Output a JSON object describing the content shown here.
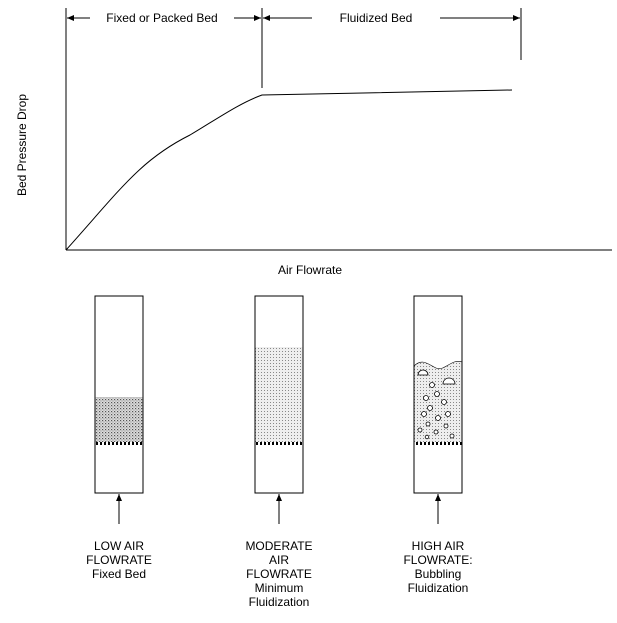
{
  "graph": {
    "regions": [
      "Fixed or Packed Bed",
      "Fluidized Bed"
    ],
    "y_axis_label": "Bed Pressure Drop",
    "x_axis_label": "Air Flowrate"
  },
  "columns": [
    {
      "label_lines": [
        "LOW AIR",
        "FLOWRATE",
        "Fixed Bed"
      ]
    },
    {
      "label_lines": [
        "MODERATE",
        "AIR",
        "FLOWRATE",
        "Minimum",
        "Fluidization"
      ]
    },
    {
      "label_lines": [
        "HIGH AIR",
        "FLOWRATE:",
        "Bubbling",
        "Fluidization"
      ]
    }
  ]
}
